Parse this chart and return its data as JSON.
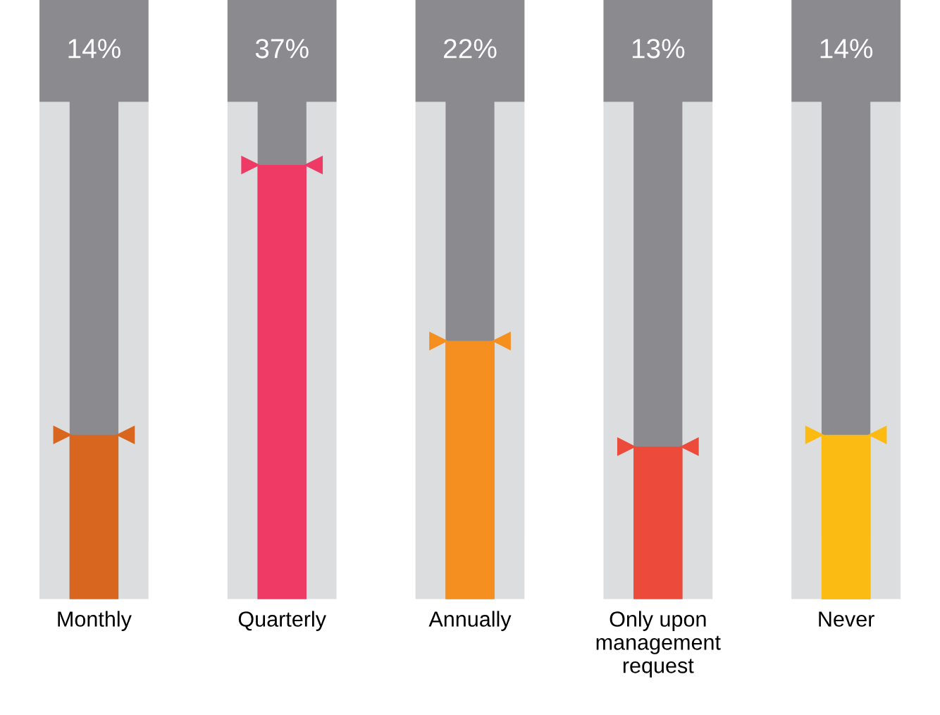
{
  "chart_data": {
    "type": "bar",
    "categories": [
      "Monthly",
      "Quarterly",
      "Annually",
      "Only upon\nmanagement\nrequest",
      "Never"
    ],
    "values": [
      14,
      37,
      22,
      13,
      14
    ],
    "value_labels": [
      "14%",
      "37%",
      "22%",
      "13%",
      "14%"
    ],
    "colors": [
      "#d9661f",
      "#ee3a64",
      "#f58f1f",
      "#ec4b3c",
      "#fbbb13"
    ],
    "grid": false,
    "legend": false
  }
}
